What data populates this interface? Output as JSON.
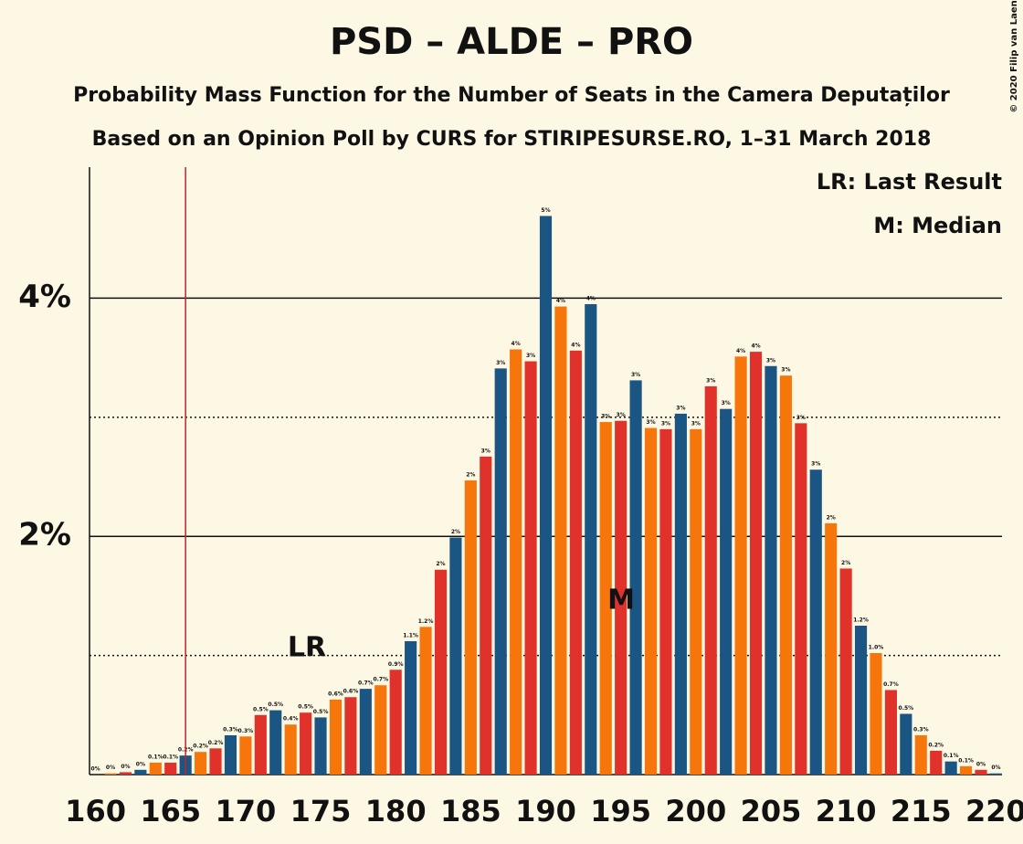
{
  "chart_data": {
    "type": "bar",
    "title": "PSD – ALDE – PRO",
    "subtitle": "Probability Mass Function for the Number of Seats in the Camera Deputaților",
    "subtitle2": "Based on an Opinion Poll by CURS for STIRIPESURSE.RO, 1–31 March 2018",
    "copyright": "© 2020 Filip van Laenen",
    "legend": [
      "LR: Last Result",
      "M: Median"
    ],
    "annotations": [
      "LR",
      "M"
    ],
    "last_result": 166,
    "x": [
      160,
      161,
      162,
      163,
      164,
      165,
      166,
      167,
      168,
      169,
      170,
      171,
      172,
      173,
      174,
      175,
      176,
      177,
      178,
      179,
      180,
      181,
      182,
      183,
      184,
      185,
      186,
      187,
      188,
      189,
      190,
      191,
      192,
      193,
      194,
      195,
      196,
      197,
      198,
      199,
      200,
      201,
      202,
      203,
      204,
      205,
      206,
      207,
      208,
      209,
      210,
      211,
      212,
      213,
      214,
      215,
      216,
      217,
      218,
      219,
      220
    ],
    "values": [
      0,
      0.01,
      0.02,
      0.04,
      0.1,
      0.1,
      0.16,
      0.19,
      0.22,
      0.33,
      0.32,
      0.5,
      0.54,
      0.42,
      0.52,
      0.48,
      0.63,
      0.65,
      0.72,
      0.75,
      0.88,
      1.12,
      1.24,
      1.72,
      1.99,
      2.47,
      2.67,
      3.41,
      3.57,
      3.47,
      4.69,
      3.93,
      3.56,
      3.95,
      2.96,
      2.97,
      3.31,
      2.91,
      2.9,
      3.03,
      2.9,
      3.26,
      3.07,
      3.51,
      3.55,
      3.43,
      3.35,
      2.95,
      2.56,
      2.11,
      1.73,
      1.25,
      1.02,
      0.71,
      0.51,
      0.33,
      0.2,
      0.11,
      0.07,
      0.04,
      0.01
    ],
    "value_labels": [
      "0%",
      "0%",
      "0%",
      "0%",
      "0.1%",
      "0.1%",
      "0.2%",
      "0.2%",
      "0.2%",
      "0.3%",
      "0.3%",
      "0.5%",
      "0.5%",
      "0.4%",
      "0.5%",
      "0.5%",
      "0.6%",
      "0.6%",
      "0.7%",
      "0.7%",
      "0.9%",
      "1.1%",
      "1.2%",
      "2%",
      "2%",
      "2%",
      "3%",
      "3%",
      "4%",
      "3%",
      "5%",
      "4%",
      "4%",
      "4%",
      "3%",
      "3%",
      "3%",
      "3%",
      "3%",
      "3%",
      "3%",
      "3%",
      "3%",
      "4%",
      "4%",
      "3%",
      "3%",
      "3%",
      "3%",
      "2%",
      "2%",
      "1.2%",
      "1.0%",
      "0.7%",
      "0.5%",
      "0.3%",
      "0.2%",
      "0.1%",
      "0.1%",
      "0%",
      "0%"
    ],
    "bar_colors": [
      "#1b5583",
      "#f7760c",
      "#e0322a"
    ],
    "last_result_color": "#c0262d",
    "xlim": [
      159.6,
      220.4
    ],
    "xticks": [
      160,
      165,
      170,
      175,
      180,
      185,
      190,
      195,
      200,
      205,
      210,
      215,
      220
    ],
    "ylim": [
      0,
      5.1
    ],
    "yticks": [
      {
        "value": 2,
        "label": "2%"
      },
      {
        "value": 4,
        "label": "4%"
      }
    ],
    "minor_yticks": [
      1,
      3
    ],
    "grid": true
  }
}
